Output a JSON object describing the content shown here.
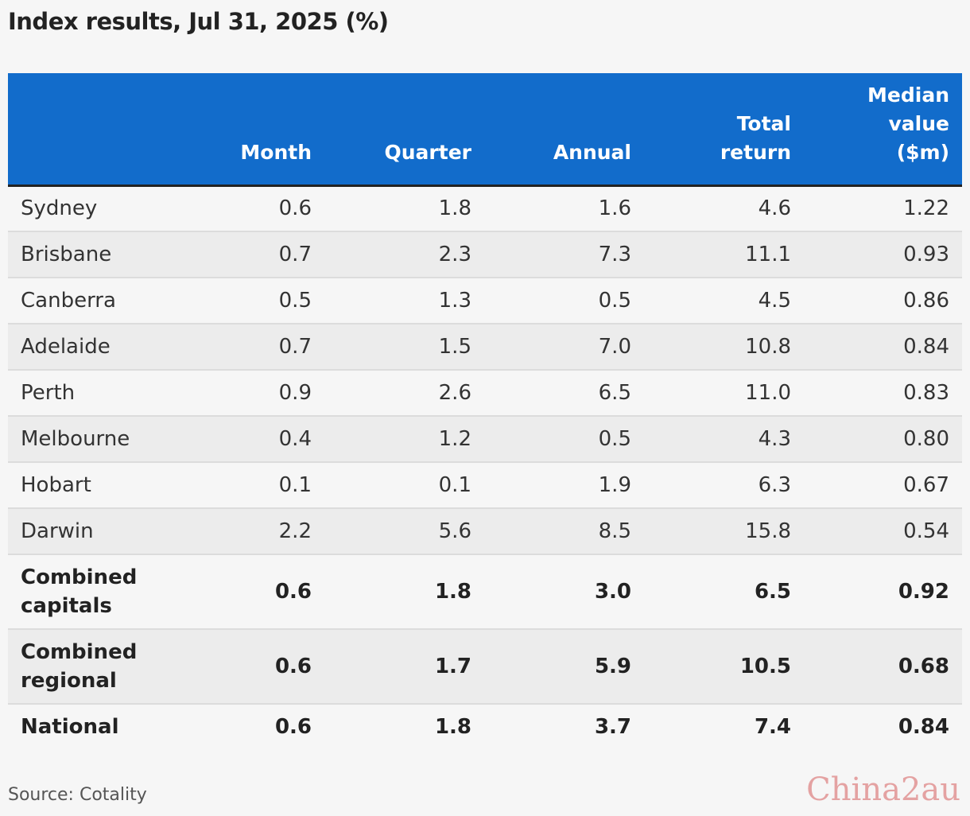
{
  "title": "Index results, Jul 31, 2025 (%)",
  "chart_data": {
    "type": "table",
    "title": "Index results, Jul 31, 2025 (%)",
    "columns": [
      "",
      "Month",
      "Quarter",
      "Annual",
      "Total return",
      "Median value ($m)"
    ],
    "rows": [
      {
        "name": "Sydney",
        "values": [
          "0.6",
          "1.8",
          "1.6",
          "4.6",
          "1.22"
        ],
        "bold": false
      },
      {
        "name": "Brisbane",
        "values": [
          "0.7",
          "2.3",
          "7.3",
          "11.1",
          "0.93"
        ],
        "bold": false
      },
      {
        "name": "Canberra",
        "values": [
          "0.5",
          "1.3",
          "0.5",
          "4.5",
          "0.86"
        ],
        "bold": false
      },
      {
        "name": "Adelaide",
        "values": [
          "0.7",
          "1.5",
          "7.0",
          "10.8",
          "0.84"
        ],
        "bold": false
      },
      {
        "name": "Perth",
        "values": [
          "0.9",
          "2.6",
          "6.5",
          "11.0",
          "0.83"
        ],
        "bold": false
      },
      {
        "name": "Melbourne",
        "values": [
          "0.4",
          "1.2",
          "0.5",
          "4.3",
          "0.80"
        ],
        "bold": false
      },
      {
        "name": "Hobart",
        "values": [
          "0.1",
          "0.1",
          "1.9",
          "6.3",
          "0.67"
        ],
        "bold": false
      },
      {
        "name": "Darwin",
        "values": [
          "2.2",
          "5.6",
          "8.5",
          "15.8",
          "0.54"
        ],
        "bold": false
      },
      {
        "name": "Combined capitals",
        "values": [
          "0.6",
          "1.8",
          "3.0",
          "6.5",
          "0.92"
        ],
        "bold": true
      },
      {
        "name": "Combined regional",
        "values": [
          "0.6",
          "1.7",
          "5.9",
          "10.5",
          "0.68"
        ],
        "bold": true
      },
      {
        "name": "National",
        "values": [
          "0.6",
          "1.8",
          "3.7",
          "7.4",
          "0.84"
        ],
        "bold": true
      }
    ]
  },
  "header": {
    "month": "Month",
    "quarter": "Quarter",
    "annual": "Annual",
    "total_return": "Total return",
    "median_value": "Median value ($m)"
  },
  "source": "Source: Cotality",
  "watermark": "China2au",
  "colors": {
    "header_bg": "#126ccb",
    "header_text": "#ffffff",
    "row_alt": "#ececec",
    "background": "#f6f6f6"
  }
}
